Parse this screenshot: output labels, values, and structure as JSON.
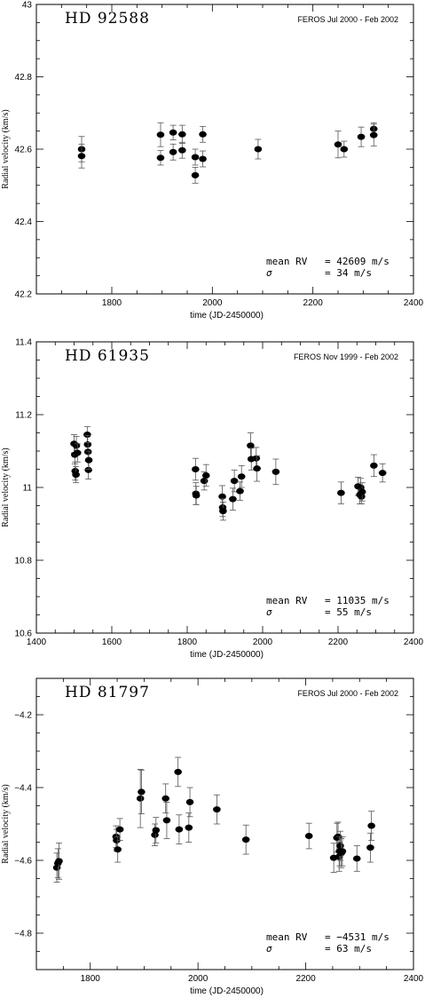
{
  "chart_data": [
    {
      "type": "scatter",
      "title": "HD 92588",
      "subtitle": "FEROS Jul 2000 - Feb 2002",
      "xlabel": "time (JD-2450000)",
      "ylabel": "Radial velocity (km/s)",
      "xlim": [
        1650,
        2400
      ],
      "ylim": [
        42.2,
        43.0
      ],
      "xticks": [
        1800,
        2000,
        2200,
        2400
      ],
      "yticks": [
        42.2,
        42.4,
        42.6,
        42.8,
        43
      ],
      "ytick_labels": [
        "42.2",
        "42.4",
        "42.6",
        "42.8",
        "43"
      ],
      "stats": {
        "mean_label": "mean RV",
        "mean_value": "= 42609 m/s",
        "sigma_label": "σ",
        "sigma_value": "= 34 m/s"
      },
      "grid": false,
      "points": [
        {
          "x": 1740,
          "y": 42.6,
          "err": 0.035
        },
        {
          "x": 1740,
          "y": 42.581,
          "err": 0.033
        },
        {
          "x": 1897,
          "y": 42.64,
          "err": 0.033
        },
        {
          "x": 1897,
          "y": 42.576,
          "err": 0.02
        },
        {
          "x": 1922,
          "y": 42.646,
          "err": 0.02
        },
        {
          "x": 1922,
          "y": 42.592,
          "err": 0.022
        },
        {
          "x": 1940,
          "y": 42.641,
          "err": 0.025
        },
        {
          "x": 1940,
          "y": 42.597,
          "err": 0.022
        },
        {
          "x": 1966,
          "y": 42.578,
          "err": 0.022
        },
        {
          "x": 1966,
          "y": 42.528,
          "err": 0.022
        },
        {
          "x": 1981,
          "y": 42.641,
          "err": 0.022
        },
        {
          "x": 1981,
          "y": 42.573,
          "err": 0.022
        },
        {
          "x": 2091,
          "y": 42.6,
          "err": 0.027
        },
        {
          "x": 2250,
          "y": 42.613,
          "err": 0.037
        },
        {
          "x": 2262,
          "y": 42.6,
          "err": 0.022
        },
        {
          "x": 2296,
          "y": 42.634,
          "err": 0.027
        },
        {
          "x": 2321,
          "y": 42.656,
          "err": 0.017
        },
        {
          "x": 2321,
          "y": 42.639,
          "err": 0.03
        }
      ]
    },
    {
      "type": "scatter",
      "title": "HD 61935",
      "subtitle": "FEROS Nov 1999 - Feb 2002",
      "xlabel": "time (JD-2450000)",
      "ylabel": "Radial velocity (km/s)",
      "xlim": [
        1400,
        2400
      ],
      "ylim": [
        10.6,
        11.4
      ],
      "xticks": [
        1400,
        1600,
        1800,
        2000,
        2200,
        2400
      ],
      "yticks": [
        10.6,
        10.8,
        11,
        11.2,
        11.4
      ],
      "ytick_labels": [
        "10.6",
        "10.8",
        "11",
        "11.2",
        "11.4"
      ],
      "stats": {
        "mean_label": "mean RV",
        "mean_value": "= 11035 m/s",
        "sigma_label": "σ",
        "sigma_value": "= 55 m/s"
      },
      "grid": false,
      "points": [
        {
          "x": 1500,
          "y": 11.12,
          "err": 0.025
        },
        {
          "x": 1502,
          "y": 11.09,
          "err": 0.025
        },
        {
          "x": 1503,
          "y": 11.045,
          "err": 0.025
        },
        {
          "x": 1505,
          "y": 11.035,
          "err": 0.022
        },
        {
          "x": 1506,
          "y": 11.115,
          "err": 0.025
        },
        {
          "x": 1509,
          "y": 11.095,
          "err": 0.025
        },
        {
          "x": 1535,
          "y": 11.145,
          "err": 0.022
        },
        {
          "x": 1536,
          "y": 11.118,
          "err": 0.025
        },
        {
          "x": 1537,
          "y": 11.098,
          "err": 0.025
        },
        {
          "x": 1538,
          "y": 11.048,
          "err": 0.025
        },
        {
          "x": 1539,
          "y": 11.075,
          "err": 0.025
        },
        {
          "x": 1822,
          "y": 11.05,
          "err": 0.03
        },
        {
          "x": 1823,
          "y": 10.983,
          "err": 0.03
        },
        {
          "x": 1824,
          "y": 10.978,
          "err": 0.025
        },
        {
          "x": 1845,
          "y": 11.018,
          "err": 0.025
        },
        {
          "x": 1850,
          "y": 11.033,
          "err": 0.03
        },
        {
          "x": 1893,
          "y": 10.975,
          "err": 0.03
        },
        {
          "x": 1894,
          "y": 10.945,
          "err": 0.025
        },
        {
          "x": 1895,
          "y": 10.935,
          "err": 0.025
        },
        {
          "x": 1921,
          "y": 10.968,
          "err": 0.03
        },
        {
          "x": 1925,
          "y": 11.018,
          "err": 0.03
        },
        {
          "x": 1940,
          "y": 10.99,
          "err": 0.025
        },
        {
          "x": 1944,
          "y": 11.03,
          "err": 0.03
        },
        {
          "x": 1968,
          "y": 11.115,
          "err": 0.035
        },
        {
          "x": 1970,
          "y": 11.078,
          "err": 0.03
        },
        {
          "x": 1983,
          "y": 11.08,
          "err": 0.03
        },
        {
          "x": 1985,
          "y": 11.052,
          "err": 0.035
        },
        {
          "x": 2035,
          "y": 11.043,
          "err": 0.035
        },
        {
          "x": 2208,
          "y": 10.985,
          "err": 0.03
        },
        {
          "x": 2253,
          "y": 11.003,
          "err": 0.025
        },
        {
          "x": 2258,
          "y": 10.98,
          "err": 0.025
        },
        {
          "x": 2260,
          "y": 11.0,
          "err": 0.025
        },
        {
          "x": 2262,
          "y": 10.975,
          "err": 0.02
        },
        {
          "x": 2264,
          "y": 10.988,
          "err": 0.025
        },
        {
          "x": 2295,
          "y": 11.06,
          "err": 0.03
        },
        {
          "x": 2318,
          "y": 11.04,
          "err": 0.025
        }
      ]
    },
    {
      "type": "scatter",
      "title": "HD 81797",
      "subtitle": "FEROS Jul 2000 - Feb 2002",
      "xlabel": "time (JD-2450000)",
      "ylabel": "Radial velocity (km/s)",
      "xlim": [
        1700,
        2400
      ],
      "ylim": [
        -4.9,
        -4.1
      ],
      "xticks": [
        1800,
        2000,
        2200,
        2400
      ],
      "yticks": [
        -4.8,
        -4.6,
        -4.4,
        -4.2
      ],
      "ytick_labels": [
        "−4.8",
        "−4.6",
        "−4.4",
        "−4.2"
      ],
      "stats": {
        "mean_label": "mean RV",
        "mean_value": "= −4531 m/s",
        "sigma_label": "σ",
        "sigma_value": "= 63 m/s"
      },
      "grid": false,
      "points": [
        {
          "x": 1738,
          "y": -4.62,
          "err": 0.04
        },
        {
          "x": 1740,
          "y": -4.608,
          "err": 0.04
        },
        {
          "x": 1742,
          "y": -4.602,
          "err": 0.05
        },
        {
          "x": 1848,
          "y": -4.535,
          "err": 0.03
        },
        {
          "x": 1849,
          "y": -4.545,
          "err": 0.03
        },
        {
          "x": 1851,
          "y": -4.57,
          "err": 0.035
        },
        {
          "x": 1855,
          "y": -4.515,
          "err": 0.03
        },
        {
          "x": 1893,
          "y": -4.43,
          "err": 0.08
        },
        {
          "x": 1895,
          "y": -4.412,
          "err": 0.06
        },
        {
          "x": 1920,
          "y": -4.53,
          "err": 0.03
        },
        {
          "x": 1922,
          "y": -4.517,
          "err": 0.035
        },
        {
          "x": 1940,
          "y": -4.43,
          "err": 0.04
        },
        {
          "x": 1942,
          "y": -4.49,
          "err": 0.05
        },
        {
          "x": 1963,
          "y": -4.357,
          "err": 0.04
        },
        {
          "x": 1965,
          "y": -4.515,
          "err": 0.04
        },
        {
          "x": 1983,
          "y": -4.51,
          "err": 0.04
        },
        {
          "x": 1985,
          "y": -4.44,
          "err": 0.04
        },
        {
          "x": 2035,
          "y": -4.46,
          "err": 0.04
        },
        {
          "x": 2089,
          "y": -4.543,
          "err": 0.04
        },
        {
          "x": 2206,
          "y": -4.533,
          "err": 0.035
        },
        {
          "x": 2252,
          "y": -4.593,
          "err": 0.04
        },
        {
          "x": 2258,
          "y": -4.538,
          "err": 0.04
        },
        {
          "x": 2260,
          "y": -4.535,
          "err": 0.04
        },
        {
          "x": 2262,
          "y": -4.59,
          "err": 0.04
        },
        {
          "x": 2263,
          "y": -4.575,
          "err": 0.04
        },
        {
          "x": 2264,
          "y": -4.56,
          "err": 0.04
        },
        {
          "x": 2266,
          "y": -4.58,
          "err": 0.04
        },
        {
          "x": 2268,
          "y": -4.575,
          "err": 0.04
        },
        {
          "x": 2295,
          "y": -4.595,
          "err": 0.035
        },
        {
          "x": 2320,
          "y": -4.565,
          "err": 0.04
        },
        {
          "x": 2322,
          "y": -4.505,
          "err": 0.04
        }
      ]
    }
  ]
}
